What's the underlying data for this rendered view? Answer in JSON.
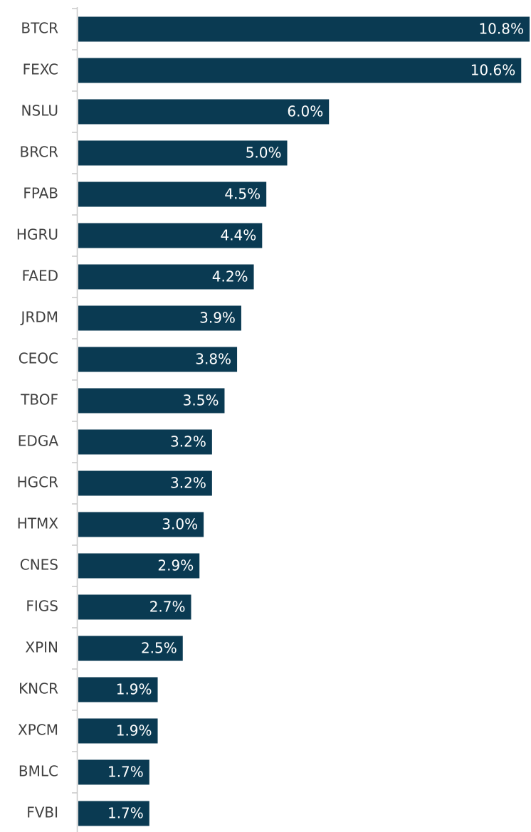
{
  "chart_data": {
    "type": "bar",
    "orientation": "horizontal",
    "color": "#0a3a52",
    "categories": [
      "BTCR",
      "FEXC",
      "NSLU",
      "BRCR",
      "FPAB",
      "HGRU",
      "FAED",
      "JRDM",
      "CEOC",
      "TBOF",
      "EDGA",
      "HGCR",
      "HTMX",
      "CNES",
      "FIGS",
      "XPIN",
      "KNCR",
      "XPCM",
      "BMLC",
      "FVBI"
    ],
    "values": [
      10.8,
      10.6,
      6.0,
      5.0,
      4.5,
      4.4,
      4.2,
      3.9,
      3.8,
      3.5,
      3.2,
      3.2,
      3.0,
      2.9,
      2.7,
      2.5,
      1.9,
      1.9,
      1.7,
      1.7
    ],
    "value_labels": [
      "10.8%",
      "10.6%",
      "6.0%",
      "5.0%",
      "4.5%",
      "4.4%",
      "4.2%",
      "3.9%",
      "3.8%",
      "3.5%",
      "3.2%",
      "3.2%",
      "3.0%",
      "2.9%",
      "2.7%",
      "2.5%",
      "1.9%",
      "1.9%",
      "1.7%",
      "1.7%"
    ]
  }
}
